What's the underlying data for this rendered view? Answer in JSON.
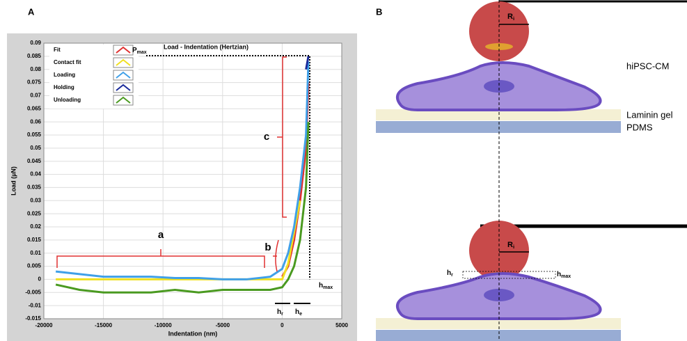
{
  "panels": [
    "A",
    "B"
  ],
  "chart_data": {
    "type": "line",
    "title": "Load - Indentation (Hertzian)",
    "xlabel": "Indentation (nm)",
    "ylabel": "Load (µN)",
    "x": [
      -19000,
      -17000,
      -15000,
      -13000,
      -11000,
      -9000,
      -7000,
      -5000,
      -3000,
      -1000,
      0,
      500,
      1000,
      1500,
      2000,
      2200
    ],
    "series": [
      {
        "name": "Fit",
        "color": "#e03030",
        "values": [
          null,
          null,
          null,
          null,
          null,
          null,
          null,
          null,
          null,
          null,
          0.001,
          0.005,
          0.015,
          0.03,
          0.05,
          0.075
        ]
      },
      {
        "name": "Contact fit",
        "color": "#f0e020",
        "values": [
          0,
          0,
          0,
          0,
          0,
          0,
          0,
          0,
          0,
          0,
          0,
          0.006,
          0.018,
          0.03,
          null,
          null
        ]
      },
      {
        "name": "Loading",
        "color": "#40a0e8",
        "values": [
          0.003,
          0.002,
          0.001,
          0.001,
          0.001,
          0.0005,
          0.0005,
          0,
          0,
          0.001,
          0.004,
          0.01,
          0.02,
          0.035,
          0.055,
          0.083
        ]
      },
      {
        "name": "Holding",
        "color": "#1a2a9a",
        "values": [
          null,
          null,
          null,
          null,
          null,
          null,
          null,
          null,
          null,
          null,
          null,
          null,
          null,
          null,
          0.08,
          0.085
        ]
      },
      {
        "name": "Unloading",
        "color": "#4a9a20",
        "values": [
          -0.002,
          -0.004,
          -0.005,
          -0.005,
          -0.005,
          -0.004,
          -0.005,
          -0.004,
          -0.004,
          -0.004,
          -0.003,
          0,
          0.005,
          0.015,
          0.035,
          0.06
        ]
      }
    ],
    "xlim": [
      -20000,
      5000
    ],
    "xticks": [
      -20000,
      -15000,
      -10000,
      -5000,
      0,
      5000
    ],
    "ylim": [
      -0.015,
      0.09
    ],
    "yticks": [
      -0.015,
      -0.01,
      -0.005,
      0,
      0.005,
      0.01,
      0.015,
      0.02,
      0.025,
      0.03,
      0.035,
      0.04,
      0.045,
      0.05,
      0.055,
      0.06,
      0.065,
      0.07,
      0.075,
      0.08,
      0.085,
      0.09
    ],
    "grid": true,
    "legend": "upper left",
    "annotations": {
      "a": "a",
      "b": "b",
      "c": "c",
      "pmax": {
        "text": "P",
        "sub": "max"
      },
      "hmax": {
        "text": "h",
        "sub": "max"
      },
      "hr": {
        "text": "h",
        "sub": "r"
      },
      "he": {
        "text": "h",
        "sub": "e"
      }
    }
  },
  "diagram": {
    "cell": "hiPSC-CM",
    "gel": "Laminin gel",
    "substrate": "PDMS",
    "radius_top": {
      "text": "R",
      "sub": "i"
    },
    "radius_bottom": {
      "text": "R",
      "sub": "i"
    },
    "hr": {
      "text": "h",
      "sub": "r"
    },
    "hmax": {
      "text": "h",
      "sub": "max"
    }
  }
}
